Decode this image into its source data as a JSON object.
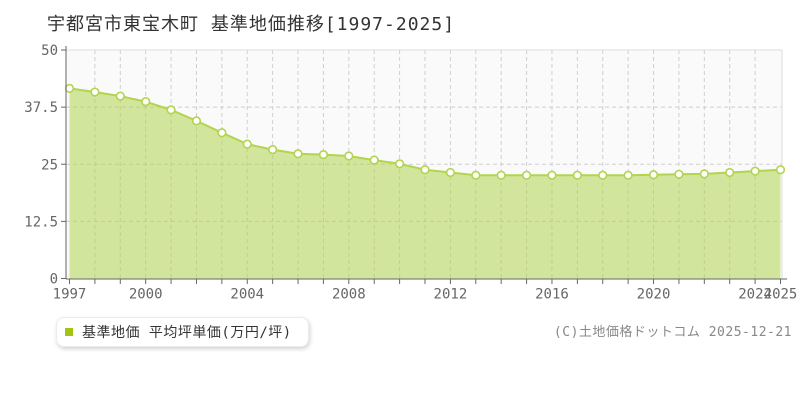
{
  "title": "宇都宮市東宝木町 基準地価推移[1997-2025]",
  "legend": {
    "label": "基準地価 平均坪単価(万円/坪)",
    "marker_color": "#a2c412"
  },
  "copyright": "(C)土地価格ドットコム 2025-12-21",
  "chart_data": {
    "type": "area",
    "title": "宇都宮市東宝木町 基準地価推移[1997-2025]",
    "series_name": "基準地価 平均坪単価(万円/坪)",
    "xlabel": "",
    "ylabel": "万円/坪",
    "x": [
      1997,
      1998,
      1999,
      2000,
      2001,
      2002,
      2003,
      2004,
      2005,
      2006,
      2007,
      2008,
      2009,
      2010,
      2011,
      2012,
      2013,
      2014,
      2015,
      2016,
      2017,
      2018,
      2019,
      2020,
      2021,
      2022,
      2023,
      2024,
      2025
    ],
    "values": [
      41.6,
      40.8,
      39.9,
      38.7,
      36.9,
      34.5,
      31.9,
      29.4,
      28.2,
      27.3,
      27.1,
      26.8,
      25.9,
      25.1,
      23.8,
      23.2,
      22.6,
      22.6,
      22.6,
      22.6,
      22.6,
      22.6,
      22.6,
      22.7,
      22.8,
      22.9,
      23.2,
      23.5,
      23.8
    ],
    "ylim": [
      0,
      50
    ],
    "y_ticks": [
      0,
      12.5,
      25,
      37.5,
      50
    ],
    "x_tick_years": [
      1997,
      2000,
      2004,
      2008,
      2012,
      2016,
      2020,
      2024,
      2025
    ],
    "grid": "dashed",
    "legend_position": "bottom-left",
    "colors": {
      "line": "#b2d44e",
      "fill": "rgba(176,212,80,0.55)",
      "marker_fill": "#ffffff",
      "marker_stroke": "#b2d44e",
      "grid": "#cfcfcf",
      "axis": "#666666",
      "tick_label": "#666666",
      "plot_bg": "#fafafa",
      "plot_border": "#dddddd"
    }
  }
}
